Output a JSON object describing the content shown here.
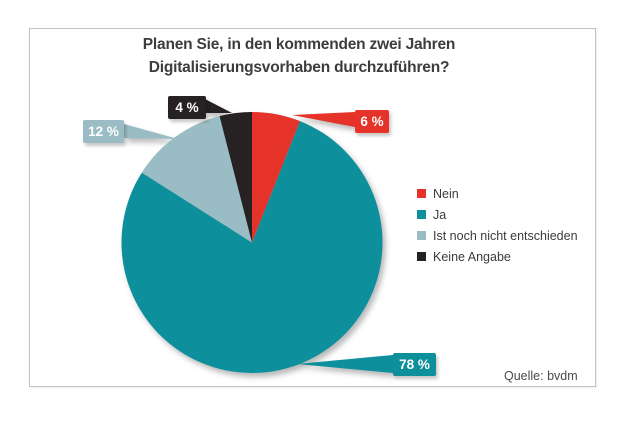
{
  "title": {
    "line1": "Planen Sie, in den kommenden zwei Jahren",
    "line2": "Digitalisierungsvorhaben durchzuführen?"
  },
  "source": "Quelle: bvdm",
  "chart_data": {
    "type": "pie",
    "title": "Planen Sie, in den kommenden zwei Jahren Digitalisierungsvorhaben durchzuführen?",
    "unit": "%",
    "start_angle_deg": 0,
    "direction": "clockwise",
    "legend_position": "right",
    "slices": [
      {
        "label": "Nein",
        "value": 6,
        "value_label": "6 %",
        "color": "#e63329"
      },
      {
        "label": "Ja",
        "value": 78,
        "value_label": "78 %",
        "color": "#0e909c"
      },
      {
        "label": "Ist noch nicht entschieden",
        "value": 12,
        "value_label": "12 %",
        "color": "#9ABCC4"
      },
      {
        "label": "Keine Angabe",
        "value": 4,
        "value_label": "4 %",
        "color": "#262223"
      }
    ],
    "source": "Quelle: bvdm"
  }
}
